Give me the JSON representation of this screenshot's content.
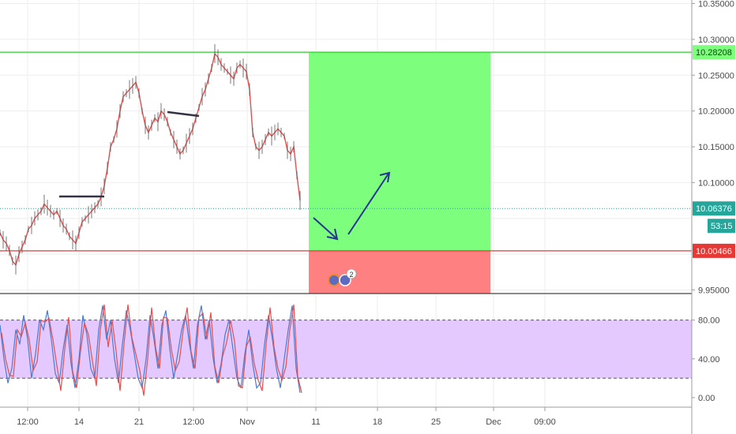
{
  "chart_data": {
    "type": "line",
    "x_ticks": [
      "12:00",
      "14",
      "21",
      "12:00",
      "Nov",
      "11",
      "18",
      "25",
      "Dec",
      "09:00"
    ],
    "y_ticks": [
      "10.35000",
      "10.30000",
      "10.25000",
      "10.20000",
      "10.15000",
      "10.10000",
      "9.95000"
    ],
    "ylim": [
      9.945,
      10.355
    ],
    "price_series": [
      [
        0,
        10.03
      ],
      [
        4,
        10.02
      ],
      [
        8,
        10.015
      ],
      [
        12,
        10.005
      ],
      [
        16,
        9.99
      ],
      [
        20,
        9.985
      ],
      [
        24,
        10.0
      ],
      [
        28,
        10.01
      ],
      [
        32,
        10.02
      ],
      [
        36,
        10.035
      ],
      [
        40,
        10.04
      ],
      [
        44,
        10.05
      ],
      [
        48,
        10.055
      ],
      [
        52,
        10.06
      ],
      [
        56,
        10.07
      ],
      [
        60,
        10.065
      ],
      [
        64,
        10.06
      ],
      [
        68,
        10.055
      ],
      [
        72,
        10.06
      ],
      [
        76,
        10.05
      ],
      [
        80,
        10.04
      ],
      [
        84,
        10.035
      ],
      [
        88,
        10.025
      ],
      [
        92,
        10.02
      ],
      [
        96,
        10.015
      ],
      [
        100,
        10.03
      ],
      [
        104,
        10.045
      ],
      [
        108,
        10.05
      ],
      [
        112,
        10.055
      ],
      [
        116,
        10.06
      ],
      [
        120,
        10.065
      ],
      [
        124,
        10.07
      ],
      [
        128,
        10.08
      ],
      [
        132,
        10.095
      ],
      [
        136,
        10.12
      ],
      [
        140,
        10.15
      ],
      [
        144,
        10.16
      ],
      [
        148,
        10.175
      ],
      [
        152,
        10.2
      ],
      [
        156,
        10.22
      ],
      [
        160,
        10.225
      ],
      [
        164,
        10.23
      ],
      [
        168,
        10.235
      ],
      [
        172,
        10.24
      ],
      [
        176,
        10.225
      ],
      [
        180,
        10.2
      ],
      [
        184,
        10.18
      ],
      [
        188,
        10.17
      ],
      [
        192,
        10.18
      ],
      [
        196,
        10.19
      ],
      [
        200,
        10.185
      ],
      [
        204,
        10.2
      ],
      [
        208,
        10.195
      ],
      [
        212,
        10.185
      ],
      [
        216,
        10.17
      ],
      [
        220,
        10.16
      ],
      [
        224,
        10.15
      ],
      [
        228,
        10.14
      ],
      [
        232,
        10.145
      ],
      [
        236,
        10.155
      ],
      [
        240,
        10.165
      ],
      [
        244,
        10.175
      ],
      [
        248,
        10.19
      ],
      [
        252,
        10.205
      ],
      [
        256,
        10.22
      ],
      [
        260,
        10.23
      ],
      [
        264,
        10.245
      ],
      [
        268,
        10.26
      ],
      [
        272,
        10.28
      ],
      [
        276,
        10.275
      ],
      [
        280,
        10.265
      ],
      [
        284,
        10.26
      ],
      [
        288,
        10.255
      ],
      [
        292,
        10.25
      ],
      [
        296,
        10.245
      ],
      [
        300,
        10.26
      ],
      [
        304,
        10.265
      ],
      [
        308,
        10.26
      ],
      [
        312,
        10.255
      ],
      [
        316,
        10.23
      ],
      [
        320,
        10.17
      ],
      [
        324,
        10.15
      ],
      [
        328,
        10.145
      ],
      [
        332,
        10.15
      ],
      [
        336,
        10.16
      ],
      [
        340,
        10.17
      ],
      [
        344,
        10.165
      ],
      [
        348,
        10.17
      ],
      [
        352,
        10.175
      ],
      [
        356,
        10.17
      ],
      [
        360,
        10.165
      ],
      [
        364,
        10.145
      ],
      [
        368,
        10.14
      ],
      [
        372,
        10.15
      ],
      [
        376,
        10.11
      ],
      [
        380,
        10.075
      ]
    ],
    "stoch_series": [
      [
        0,
        75
      ],
      [
        5,
        40
      ],
      [
        10,
        15
      ],
      [
        15,
        30
      ],
      [
        20,
        70
      ],
      [
        25,
        55
      ],
      [
        30,
        85
      ],
      [
        35,
        60
      ],
      [
        40,
        20
      ],
      [
        45,
        45
      ],
      [
        50,
        80
      ],
      [
        55,
        70
      ],
      [
        60,
        90
      ],
      [
        65,
        60
      ],
      [
        70,
        25
      ],
      [
        75,
        15
      ],
      [
        80,
        50
      ],
      [
        85,
        75
      ],
      [
        90,
        35
      ],
      [
        95,
        10
      ],
      [
        100,
        40
      ],
      [
        105,
        85
      ],
      [
        110,
        65
      ],
      [
        115,
        30
      ],
      [
        120,
        20
      ],
      [
        125,
        70
      ],
      [
        130,
        95
      ],
      [
        135,
        60
      ],
      [
        140,
        80
      ],
      [
        145,
        40
      ],
      [
        150,
        15
      ],
      [
        155,
        55
      ],
      [
        160,
        90
      ],
      [
        165,
        70
      ],
      [
        170,
        45
      ],
      [
        175,
        20
      ],
      [
        180,
        10
      ],
      [
        185,
        40
      ],
      [
        190,
        85
      ],
      [
        195,
        60
      ],
      [
        200,
        30
      ],
      [
        205,
        75
      ],
      [
        210,
        90
      ],
      [
        215,
        50
      ],
      [
        220,
        20
      ],
      [
        225,
        45
      ],
      [
        230,
        70
      ],
      [
        235,
        85
      ],
      [
        240,
        55
      ],
      [
        245,
        30
      ],
      [
        250,
        75
      ],
      [
        255,
        95
      ],
      [
        260,
        60
      ],
      [
        265,
        80
      ],
      [
        270,
        40
      ],
      [
        275,
        15
      ],
      [
        280,
        35
      ],
      [
        285,
        65
      ],
      [
        290,
        80
      ],
      [
        295,
        50
      ],
      [
        300,
        20
      ],
      [
        305,
        10
      ],
      [
        310,
        45
      ],
      [
        315,
        70
      ],
      [
        320,
        35
      ],
      [
        325,
        10
      ],
      [
        330,
        15
      ],
      [
        335,
        55
      ],
      [
        340,
        85
      ],
      [
        345,
        60
      ],
      [
        350,
        30
      ],
      [
        355,
        10
      ],
      [
        360,
        40
      ],
      [
        365,
        70
      ],
      [
        370,
        95
      ],
      [
        375,
        30
      ],
      [
        380,
        5
      ]
    ],
    "stoch_ylim": [
      -5,
      96
    ],
    "stoch_ticks": [
      "80.00",
      "40.00",
      "0.00"
    ],
    "annotations": {
      "take_profit": 10.28208,
      "entry": 10.00466,
      "last": 10.06376,
      "stop": 9.945
    },
    "price_tags": {
      "take_profit_label": "10.28208",
      "last_label": "10.06376",
      "countdown": "53:15",
      "entry_label": "10.00466"
    },
    "events_badge": "2",
    "colors": {
      "profit_zone": "#7dff7d",
      "loss_zone": "#ff8080",
      "tp_line": "#2ecc2e",
      "entry_line": "#e53935",
      "last_line": "#26a69a",
      "price_line": "#e35050",
      "arrow": "#283593",
      "stoch_band": "#e3c9ff",
      "stoch_line": "#e35050",
      "stoch_line2": "#4a7bd0"
    }
  }
}
